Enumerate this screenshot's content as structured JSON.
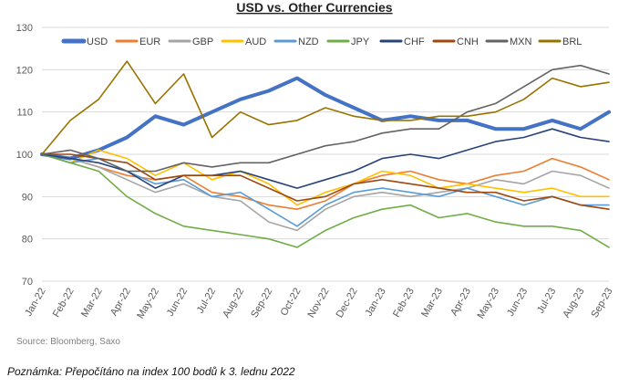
{
  "chart_data": {
    "type": "line",
    "title": "USD vs. Other Currencies",
    "xlabel": "",
    "ylabel": "",
    "ylim": [
      70,
      130
    ],
    "yticks": [
      70,
      80,
      90,
      100,
      110,
      120,
      130
    ],
    "categories": [
      "Jan-22",
      "Feb-22",
      "Mar-22",
      "Apr-22",
      "May-22",
      "Jun-22",
      "Jul-22",
      "Aug-22",
      "Sep-22",
      "Oct-22",
      "Nov-22",
      "Dec-22",
      "Jan-23",
      "Feb-23",
      "Mar-23",
      "Apr-23",
      "May-23",
      "Jun-23",
      "Jul-23",
      "Aug-23",
      "Sep-23"
    ],
    "series": [
      {
        "name": "USD",
        "color": "#4472c4",
        "width": 4,
        "values": [
          100,
          99,
          101,
          104,
          109,
          107,
          110,
          113,
          115,
          118,
          114,
          111,
          108,
          109,
          108,
          108,
          106,
          106,
          108,
          106,
          110
        ]
      },
      {
        "name": "EUR",
        "color": "#ed7d31",
        "width": 1.6,
        "values": [
          100,
          99,
          97,
          95,
          94,
          95,
          91,
          90,
          88,
          87,
          89,
          93,
          95,
          96,
          94,
          93,
          95,
          96,
          99,
          97,
          94
        ]
      },
      {
        "name": "GBP",
        "color": "#a5a5a5",
        "width": 1.6,
        "values": [
          100,
          99,
          97,
          94,
          91,
          93,
          90,
          89,
          84,
          82,
          87,
          90,
          91,
          90,
          91,
          92,
          94,
          93,
          96,
          95,
          92
        ]
      },
      {
        "name": "AUD",
        "color": "#ffc000",
        "width": 1.6,
        "values": [
          100,
          98,
          101,
          99,
          95,
          98,
          94,
          96,
          93,
          88,
          91,
          93,
          96,
          95,
          92,
          93,
          92,
          91,
          92,
          90,
          90
        ]
      },
      {
        "name": "NZD",
        "color": "#5b9bd5",
        "width": 1.6,
        "values": [
          100,
          98,
          99,
          96,
          93,
          94,
          90,
          91,
          87,
          83,
          88,
          91,
          92,
          91,
          90,
          92,
          90,
          88,
          90,
          88,
          88
        ]
      },
      {
        "name": "JPY",
        "color": "#70ad47",
        "width": 1.6,
        "values": [
          100,
          98,
          96,
          90,
          86,
          83,
          82,
          81,
          80,
          78,
          82,
          85,
          87,
          88,
          85,
          86,
          84,
          83,
          83,
          82,
          78
        ]
      },
      {
        "name": "CHF",
        "color": "#264478",
        "width": 1.6,
        "values": [
          100,
          99,
          98,
          96,
          92,
          95,
          95,
          96,
          94,
          92,
          94,
          96,
          99,
          100,
          99,
          101,
          103,
          104,
          106,
          104,
          103
        ]
      },
      {
        "name": "CNH",
        "color": "#9e480e",
        "width": 1.6,
        "values": [
          100,
          100,
          99,
          98,
          94,
          95,
          95,
          95,
          92,
          89,
          90,
          93,
          94,
          93,
          92,
          91,
          91,
          89,
          90,
          88,
          87
        ]
      },
      {
        "name": "MXN",
        "color": "#636363",
        "width": 1.6,
        "values": [
          100,
          101,
          99,
          96,
          96,
          98,
          97,
          98,
          98,
          100,
          102,
          103,
          105,
          106,
          106,
          110,
          112,
          116,
          120,
          121,
          119
        ]
      },
      {
        "name": "BRL",
        "color": "#997300",
        "width": 1.6,
        "values": [
          100,
          108,
          113,
          122,
          112,
          119,
          104,
          110,
          107,
          108,
          111,
          109,
          108,
          108,
          109,
          109,
          110,
          113,
          118,
          116,
          117
        ]
      }
    ]
  },
  "source": "Source: Bloomberg, Saxo",
  "note": "Poznámka: Přepočítáno na index 100 bodů k 3. lednu 2022"
}
